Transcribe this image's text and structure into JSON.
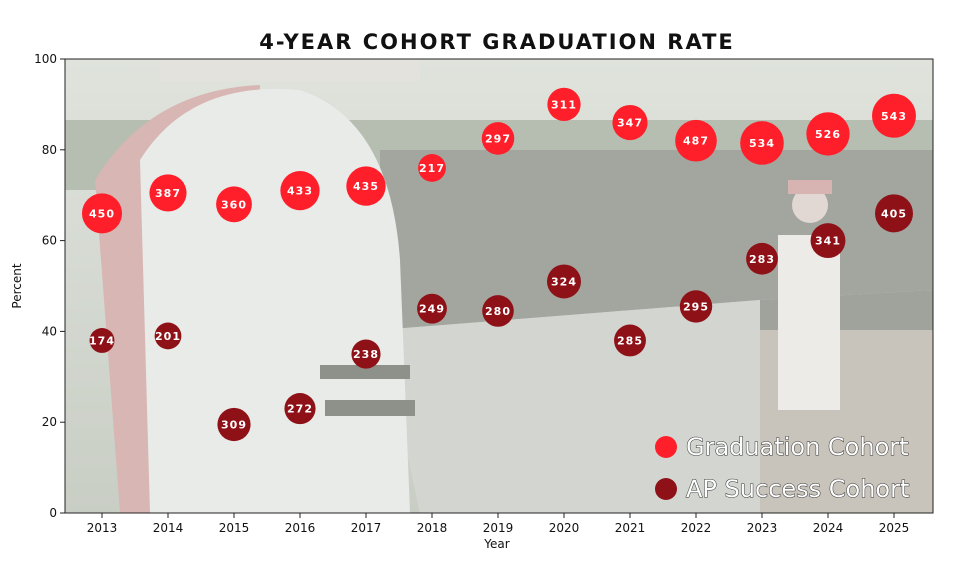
{
  "chart_data": {
    "type": "scatter",
    "title": "4-YEAR COHORT GRADUATION RATE",
    "xlabel": "Year",
    "ylabel": "Percent",
    "ylim": [
      0,
      100
    ],
    "yticks": [
      0,
      20,
      40,
      60,
      80,
      100
    ],
    "x": [
      "2013",
      "2014",
      "2015",
      "2016",
      "2017",
      "2018",
      "2019",
      "2020",
      "2021",
      "2022",
      "2023",
      "2024",
      "2025"
    ],
    "series": [
      {
        "name": "Graduation Cohort",
        "color": "#ff1f2a",
        "y": [
          66,
          70.5,
          68,
          71,
          72,
          76,
          82.5,
          90,
          86,
          82,
          81.5,
          83.5,
          87.5
        ],
        "labels": [
          "450",
          "387",
          "360",
          "433",
          "435",
          "217",
          "297",
          "311",
          "347",
          "487",
          "534",
          "526",
          "543"
        ]
      },
      {
        "name": "AP Success Cohort",
        "color": "#8e1118",
        "y": [
          38,
          39,
          19.5,
          23,
          35,
          45,
          44.5,
          51,
          38,
          45.5,
          56,
          60,
          66
        ],
        "labels": [
          "174",
          "201",
          "309",
          "272",
          "238",
          "249",
          "280",
          "324",
          "285",
          "295",
          "283",
          "341",
          "405"
        ]
      }
    ],
    "legend": {
      "position": "bottom-right"
    },
    "background": "faded photo of marching band member in front of stone wall"
  }
}
